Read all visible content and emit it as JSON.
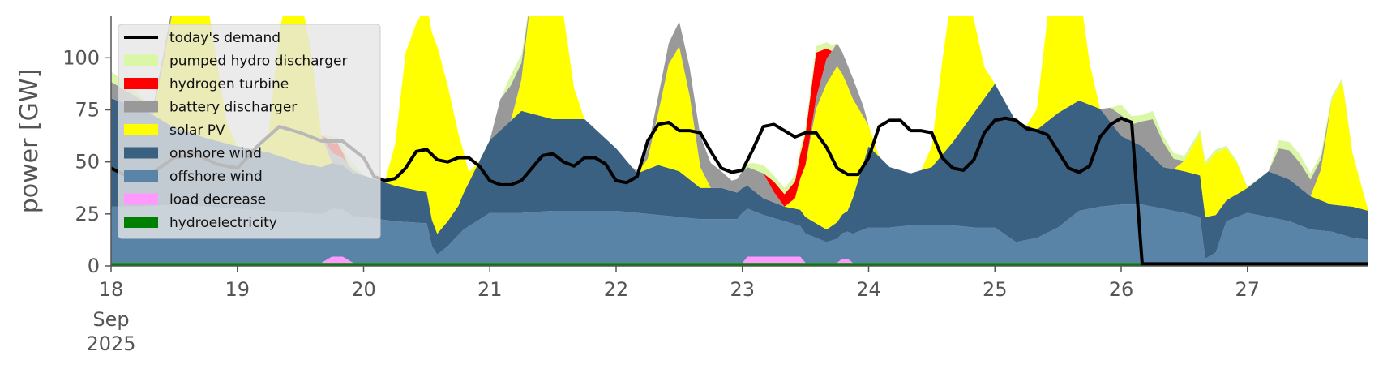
{
  "chart_data": {
    "type": "area",
    "title": "",
    "xlabel": "",
    "ylabel": "power [GW]",
    "ylim": [
      0,
      120
    ],
    "xlim": [
      0,
      239
    ],
    "x_unit": "hours from 2025-09-18 00:00",
    "grid": false,
    "legend_position": "top-left",
    "yticks": [
      0,
      25,
      50,
      75,
      100
    ],
    "xticks": [
      {
        "label": "18",
        "x": 0
      },
      {
        "label": "19",
        "x": 24
      },
      {
        "label": "20",
        "x": 48
      },
      {
        "label": "21",
        "x": 72
      },
      {
        "label": "22",
        "x": 96
      },
      {
        "label": "23",
        "x": 120
      },
      {
        "label": "24",
        "x": 144
      },
      {
        "label": "25",
        "x": 168
      },
      {
        "label": "26",
        "x": 192
      },
      {
        "label": "27",
        "x": 216
      }
    ],
    "x_sublabels": [
      "Sep",
      "2025"
    ],
    "legend": [
      {
        "label": "today's demand",
        "color": "#000000",
        "kind": "line"
      },
      {
        "label": "pumped hydro discharger",
        "color": "#d9f7a4",
        "kind": "patch"
      },
      {
        "label": "hydrogen turbine",
        "color": "#ff0000",
        "kind": "patch"
      },
      {
        "label": "battery discharger",
        "color": "#999999",
        "kind": "patch"
      },
      {
        "label": "solar PV",
        "color": "#ffff00",
        "kind": "patch"
      },
      {
        "label": "onshore wind",
        "color": "#3b6182",
        "kind": "patch"
      },
      {
        "label": "offshore wind",
        "color": "#5a83a8",
        "kind": "patch"
      },
      {
        "label": "load decrease",
        "color": "#ff99ff",
        "kind": "patch"
      },
      {
        "label": "hydroelectricity",
        "color": "#008000",
        "kind": "patch"
      }
    ],
    "stack_order": [
      "hydroelectricity",
      "load decrease",
      "offshore wind",
      "onshore wind",
      "solar PV",
      "battery discharger",
      "hydrogen turbine",
      "pumped hydro discharger"
    ],
    "series": [
      {
        "name": "hydroelectricity",
        "color": "#008000",
        "x": [
          0,
          239
        ],
        "y": [
          1.5,
          1.5
        ]
      },
      {
        "name": "load decrease",
        "color": "#ff99ff",
        "x": [
          0,
          40,
          42,
          44,
          46,
          120,
          121,
          131,
          132,
          138,
          139,
          140,
          141,
          239
        ],
        "y": [
          0,
          0,
          3,
          3,
          0,
          0,
          3,
          3,
          0,
          0,
          2,
          2,
          0,
          0
        ]
      },
      {
        "name": "offshore wind",
        "color": "#5a83a8",
        "x": [
          0,
          6,
          12,
          18,
          24,
          30,
          36,
          42,
          48,
          54,
          60,
          61,
          62,
          64,
          67,
          72,
          78,
          84,
          90,
          96,
          100,
          104,
          108,
          112,
          116,
          119,
          120,
          124,
          128,
          132,
          136,
          140,
          144,
          148,
          152,
          156,
          160,
          164,
          168,
          172,
          176,
          180,
          184,
          188,
          192,
          196,
          200,
          204,
          207,
          208,
          210,
          212,
          216,
          220,
          224,
          228,
          232,
          236,
          239
        ],
        "y": [
          27,
          27,
          28,
          27,
          26,
          25,
          24,
          23,
          22,
          20,
          19,
          8,
          4,
          8,
          16,
          24,
          24,
          25,
          25,
          25,
          24,
          23,
          22,
          21,
          21,
          21,
          24,
          20,
          17,
          14,
          10,
          13,
          17,
          17,
          18,
          18,
          18,
          17,
          17,
          10,
          12,
          17,
          25,
          27,
          28,
          28,
          26,
          24,
          22,
          2,
          5,
          20,
          24,
          22,
          20,
          16,
          15,
          12,
          11
        ]
      },
      {
        "name": "onshore wind",
        "color": "#3b6182",
        "x": [
          0,
          6,
          12,
          18,
          24,
          30,
          36,
          42,
          48,
          54,
          60,
          62,
          66,
          72,
          78,
          84,
          90,
          96,
          100,
          104,
          108,
          112,
          116,
          120,
          124,
          128,
          132,
          136,
          140,
          144,
          148,
          152,
          156,
          160,
          164,
          168,
          172,
          176,
          180,
          184,
          188,
          192,
          196,
          200,
          204,
          206,
          208,
          210,
          212,
          216,
          220,
          224,
          228,
          232,
          236,
          239
        ],
        "y": [
          52,
          47,
          37,
          33,
          30,
          28,
          24,
          22,
          20,
          17,
          15,
          10,
          14,
          35,
          49,
          44,
          44,
          30,
          19,
          24,
          22,
          15,
          15,
          12,
          8,
          7,
          8,
          6,
          10,
          39,
          29,
          25,
          28,
          40,
          55,
          69,
          58,
          52,
          55,
          53,
          47,
          33,
          28,
          20,
          20,
          20,
          20,
          18,
          10,
          12,
          22,
          20,
          16,
          13,
          15,
          14
        ]
      },
      {
        "name": "solar PV",
        "color": "#ffff00",
        "x": [
          0,
          4,
          8,
          10,
          12,
          14,
          16,
          18,
          20,
          22,
          24,
          26,
          28,
          30,
          32,
          34,
          36,
          38,
          40,
          42,
          44,
          46,
          48,
          50,
          52,
          54,
          56,
          58,
          60,
          62,
          64,
          66,
          68,
          70,
          72,
          74,
          76,
          78,
          80,
          82,
          84,
          86,
          88,
          90,
          92,
          94,
          96,
          98,
          100,
          102,
          104,
          106,
          108,
          110,
          112,
          114,
          116,
          118,
          120,
          122,
          124,
          126,
          128,
          130,
          132,
          134,
          136,
          138,
          140,
          142,
          144,
          146,
          148,
          150,
          152,
          154,
          156,
          158,
          160,
          162,
          164,
          166,
          168,
          170,
          172,
          174,
          176,
          178,
          180,
          182,
          184,
          186,
          188,
          190,
          192,
          194,
          196,
          198,
          200,
          202,
          204,
          206,
          208,
          210,
          212,
          214,
          216,
          218,
          220,
          222,
          224,
          226,
          228,
          230,
          232,
          234,
          236,
          239
        ],
        "y": [
          0,
          0,
          0,
          30,
          60,
          85,
          80,
          70,
          40,
          10,
          0,
          0,
          0,
          10,
          60,
          85,
          80,
          55,
          15,
          0,
          0,
          0,
          0,
          0,
          0,
          20,
          65,
          80,
          90,
          90,
          65,
          35,
          5,
          0,
          0,
          0,
          0,
          15,
          60,
          85,
          85,
          50,
          15,
          0,
          0,
          0,
          0,
          0,
          0,
          5,
          25,
          50,
          60,
          40,
          10,
          0,
          0,
          0,
          0,
          0,
          0,
          0,
          0,
          5,
          25,
          55,
          70,
          75,
          60,
          35,
          10,
          0,
          0,
          0,
          0,
          0,
          10,
          45,
          75,
          70,
          45,
          15,
          0,
          0,
          0,
          0,
          10,
          50,
          75,
          70,
          55,
          20,
          0,
          0,
          0,
          0,
          0,
          0,
          0,
          0,
          5,
          15,
          25,
          30,
          25,
          15,
          0,
          0,
          0,
          0,
          0,
          0,
          0,
          15,
          50,
          60,
          25,
          0
        ]
      },
      {
        "name": "battery discharger",
        "color": "#999999",
        "x": [
          0,
          6,
          12,
          14,
          16,
          20,
          24,
          40,
          42,
          48,
          68,
          70,
          72,
          74,
          76,
          78,
          80,
          82,
          84,
          86,
          88,
          96,
          99,
          101,
          104,
          108,
          112,
          114,
          116,
          118,
          120,
          122,
          124,
          126,
          128,
          130,
          132,
          134,
          136,
          140,
          141,
          143,
          144,
          148,
          156,
          164,
          168,
          176,
          184,
          188,
          190,
          192,
          194,
          196,
          198,
          200,
          202,
          204,
          206,
          208,
          212,
          216,
          220,
          222,
          224,
          226,
          228,
          230,
          232,
          234,
          239
        ],
        "y": [
          8,
          4,
          3,
          0,
          0,
          0,
          0,
          0,
          5,
          0,
          0,
          0,
          0,
          15,
          17,
          8,
          0,
          0,
          0,
          0,
          0,
          0,
          0,
          3,
          8,
          12,
          15,
          12,
          8,
          5,
          8,
          10,
          12,
          5,
          0,
          0,
          0,
          5,
          12,
          10,
          10,
          5,
          0,
          0,
          0,
          0,
          0,
          0,
          0,
          0,
          7,
          10,
          8,
          12,
          18,
          12,
          5,
          0,
          0,
          0,
          0,
          0,
          0,
          13,
          14,
          12,
          8,
          5,
          0,
          0,
          0
        ]
      },
      {
        "name": "hydrogen turbine",
        "color": "#ff0000",
        "x": [
          0,
          40,
          41,
          43,
          45,
          124,
          126,
          128,
          130,
          132,
          134,
          136,
          137,
          239
        ],
        "y": [
          0,
          0,
          3,
          6,
          0,
          0,
          5,
          6,
          8,
          15,
          22,
          5,
          0,
          0
        ]
      },
      {
        "name": "pumped hydro discharger",
        "color": "#d9f7a4",
        "x": [
          0,
          4,
          8,
          40,
          42,
          44,
          46,
          48,
          74,
          76,
          78,
          80,
          120,
          122,
          124,
          126,
          136,
          137,
          138,
          190,
          192,
          194,
          196,
          198,
          200,
          220,
          222,
          224,
          226,
          228,
          239
        ],
        "y": [
          5,
          3,
          0,
          0,
          3,
          3,
          3,
          0,
          0,
          5,
          4,
          0,
          0,
          3,
          4,
          3,
          3,
          3,
          0,
          0,
          5,
          4,
          3,
          4,
          3,
          0,
          4,
          4,
          4,
          3,
          0
        ]
      },
      {
        "name": "today's demand",
        "color": "#000000",
        "x": [
          0,
          4,
          8,
          12,
          16,
          20,
          24,
          28,
          32,
          36,
          40,
          44,
          48,
          50,
          52,
          54,
          56,
          58,
          60,
          62,
          64,
          66,
          68,
          70,
          72,
          74,
          76,
          78,
          80,
          82,
          84,
          86,
          88,
          90,
          92,
          94,
          96,
          98,
          100,
          102,
          104,
          106,
          108,
          110,
          112,
          114,
          116,
          118,
          120,
          122,
          124,
          126,
          128,
          130,
          132,
          134,
          136,
          138,
          140,
          142,
          144,
          146,
          148,
          150,
          152,
          154,
          156,
          158,
          160,
          162,
          164,
          166,
          168,
          170,
          172,
          174,
          176,
          178,
          180,
          182,
          184,
          186,
          188,
          190,
          192,
          194,
          196,
          198,
          200,
          202,
          204,
          205,
          206,
          207,
          208,
          212,
          216,
          220,
          224,
          228,
          232,
          236,
          239
        ],
        "y": [
          47,
          42,
          45,
          52,
          54,
          49,
          47,
          58,
          67,
          64,
          60,
          60,
          52,
          43,
          41,
          42,
          47,
          55,
          56,
          51,
          50,
          52,
          52,
          48,
          41,
          39,
          39,
          41,
          47,
          53,
          54,
          50,
          48,
          52,
          52,
          49,
          41,
          40,
          43,
          60,
          68,
          69,
          65,
          65,
          64,
          55,
          47,
          45,
          46,
          56,
          67,
          68,
          65,
          62,
          64,
          64,
          57,
          47,
          44,
          44,
          52,
          67,
          70,
          70,
          65,
          65,
          64,
          52,
          47,
          46,
          51,
          64,
          70,
          71,
          70,
          66,
          65,
          63,
          55,
          47,
          45,
          48,
          62,
          68,
          71,
          69,
          1,
          1,
          1,
          1,
          1,
          1,
          1,
          1,
          1,
          1,
          1,
          1,
          1,
          1,
          1,
          1,
          1
        ]
      }
    ]
  }
}
